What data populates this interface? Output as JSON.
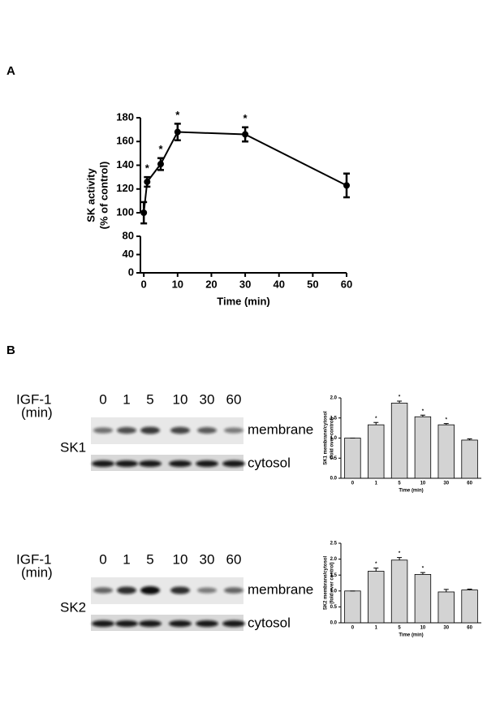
{
  "panel_labels": [
    "A",
    "B"
  ],
  "chart_data": [
    {
      "type": "line",
      "x_label": "Time (min)",
      "y_label": [
        "SK activity",
        "(% of control)"
      ],
      "x": [
        0,
        1,
        5,
        10,
        30,
        60
      ],
      "series": [
        {
          "name": "SK activity",
          "color": "#000000",
          "values": [
            100,
            126,
            141,
            168,
            166,
            123
          ],
          "errors": [
            9,
            4,
            5,
            7,
            6,
            10
          ]
        }
      ],
      "annotations": [
        {
          "x": 1,
          "text": "*"
        },
        {
          "x": 5,
          "text": "*"
        },
        {
          "x": 10,
          "text": "*"
        },
        {
          "x": 30,
          "text": "*"
        }
      ],
      "xlim": [
        -1,
        60
      ],
      "xticks": [
        0,
        10,
        20,
        30,
        40,
        50,
        60
      ],
      "ylim": [
        0,
        180
      ],
      "y_break": [
        80,
        100
      ],
      "yticks": [
        0,
        40,
        80,
        100,
        120,
        140,
        160,
        180
      ]
    },
    {
      "type": "bar",
      "x_label": "Time (min)",
      "y_label": [
        "SK1 membrane/cytosol",
        "(fold over control)"
      ],
      "categories": [
        "0",
        "1",
        "5",
        "10",
        "30",
        "60"
      ],
      "series": [
        {
          "name": "SK1",
          "color": "#d3d3d3",
          "values": [
            1.0,
            1.33,
            1.87,
            1.53,
            1.33,
            0.95
          ],
          "errors": [
            0,
            0.06,
            0.05,
            0.04,
            0.03,
            0.03
          ]
        }
      ],
      "annotations": [
        {
          "x": "1",
          "text": "*"
        },
        {
          "x": "5",
          "text": "*"
        },
        {
          "x": "10",
          "text": "*"
        },
        {
          "x": "30",
          "text": "*"
        }
      ],
      "ylim": [
        0,
        2.0
      ],
      "yticks": [
        {
          "value": 0,
          "label": "0.0"
        },
        0.5,
        {
          "value": 1,
          "label": "1.0"
        },
        1.5,
        {
          "value": 2,
          "label": "2.0"
        }
      ]
    },
    {
      "type": "bar",
      "x_label": "Time (min)",
      "y_label": [
        "SK2 membrane/cytosol",
        "(fold over control)"
      ],
      "categories": [
        "0",
        "1",
        "5",
        "10",
        "30",
        "60"
      ],
      "series": [
        {
          "name": "SK2",
          "color": "#d3d3d3",
          "values": [
            1.0,
            1.62,
            1.97,
            1.52,
            0.97,
            1.03
          ],
          "errors": [
            0,
            0.1,
            0.08,
            0.06,
            0.08,
            0.03
          ]
        }
      ],
      "annotations": [
        {
          "x": "1",
          "text": "*"
        },
        {
          "x": "5",
          "text": "*"
        },
        {
          "x": "10",
          "text": "*"
        }
      ],
      "ylim": [
        0,
        2.5
      ],
      "yticks": [
        {
          "value": 0,
          "label": "0.0"
        },
        0.5,
        {
          "value": 1,
          "label": "1.0"
        },
        1.5,
        {
          "value": 2,
          "label": "2.0"
        },
        2.5
      ]
    }
  ],
  "blots": [
    {
      "treatment": "IGF-1",
      "unit": "(min)",
      "times": [
        "0",
        "1",
        "5",
        "10",
        "30",
        "60"
      ],
      "protein": "SK1",
      "rows": [
        "membrane",
        "cytosol"
      ]
    },
    {
      "treatment": "IGF-1",
      "unit": "(min)",
      "times": [
        "0",
        "1",
        "5",
        "10",
        "30",
        "60"
      ],
      "protein": "SK2",
      "rows": [
        "membrane",
        "cytosol"
      ]
    }
  ]
}
